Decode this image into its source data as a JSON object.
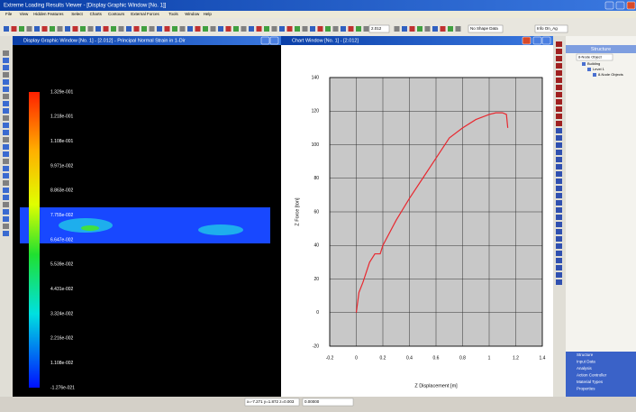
{
  "app": {
    "title": "Extreme Loading Results Viewer - [Display Graphic Window [No. 1]]",
    "menu": [
      "File",
      "View",
      "Hidden Features",
      "Select",
      "Charts",
      "Contours",
      "External Forces",
      "Tools",
      "Window",
      "Help"
    ],
    "toolbar_fields": [
      "2.012",
      "No Shape Data",
      "Info On_Ag"
    ]
  },
  "graphic_window": {
    "title": "Display Graphic Window [No. 1] - [2.012] - Principal Normal Strain in 1-Dir",
    "legend_labels": [
      "1.329e-001",
      "1.218e-001",
      "1.108e-001",
      "9.971e-002",
      "8.863e-002",
      "7.755e-002",
      "6.647e-002",
      "5.539e-002",
      "4.431e-002",
      "3.324e-002",
      "2.216e-002",
      "1.108e-002",
      "-1.276e-021"
    ]
  },
  "chart_window": {
    "title": "Chart Window [No. 1] - [2.012]"
  },
  "chart_data": {
    "type": "line",
    "x_label": "Z Displacement [m]",
    "y_label": "Z Force [ton]",
    "x": [
      0,
      0.02,
      0.05,
      0.1,
      0.14,
      0.18,
      0.2,
      0.3,
      0.4,
      0.5,
      0.6,
      0.7,
      0.8,
      0.9,
      1.0,
      1.05,
      1.1,
      1.13,
      1.14
    ],
    "series": [
      {
        "color": "#e8282f",
        "values": [
          0,
          12,
          18,
          30,
          35,
          35,
          40,
          55,
          68,
          80,
          92,
          104,
          110,
          115,
          118,
          119,
          119,
          118,
          110
        ]
      }
    ],
    "xlim": [
      -0.2,
      1.4
    ],
    "xticks": [
      -0.2,
      0,
      0.2,
      0.4,
      0.6,
      0.8,
      1,
      1.2,
      1.4
    ],
    "ylim": [
      -20,
      140
    ],
    "yticks": [
      -20,
      0,
      20,
      40,
      60,
      80,
      100,
      120,
      140
    ],
    "grid": true
  },
  "structure_panel": {
    "title": "Structure",
    "dropdown": "8-Node Object",
    "tree": [
      "Building",
      "Level 1",
      "8-Node Objects"
    ],
    "tabs": [
      "Structure",
      "Input Data",
      "Analysis",
      "Action Controller",
      "Material Types",
      "Properties"
    ]
  },
  "status_bar": {
    "coords": "x=-7.271 y=1.872 z=0.003",
    "value": "0.00000"
  }
}
